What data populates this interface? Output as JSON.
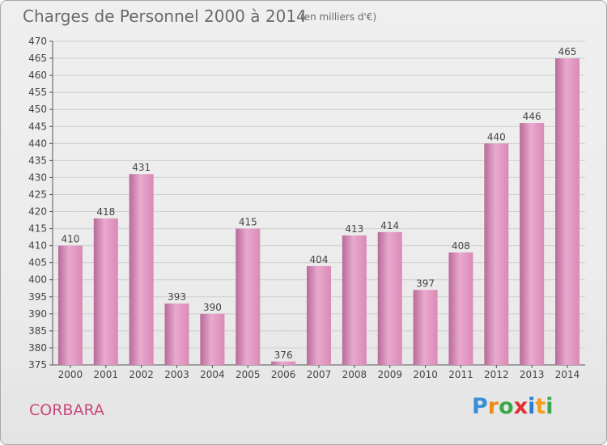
{
  "title": "Charges de Personnel 2000 à 2014",
  "unit": "(en milliers d'€)",
  "place": "CORBARA",
  "logo": {
    "letters": [
      "P",
      "r",
      "o",
      "x",
      "i",
      "t",
      "i"
    ],
    "colors": [
      "#3a8fd6",
      "#f08a1c",
      "#3aa84a",
      "#e03030",
      "#2a7fcc",
      "#f0a01c",
      "#3aa84a"
    ]
  },
  "colors": {
    "bar": "#d98ab5",
    "bar_light": "#e9a9cf",
    "bar_dark": "#b86a98",
    "grid": "#cfcfcf",
    "title": "#6a6a6a",
    "place": "#c8497a"
  },
  "chart_data": {
    "type": "bar",
    "categories": [
      "2000",
      "2001",
      "2002",
      "2003",
      "2004",
      "2005",
      "2006",
      "2007",
      "2008",
      "2009",
      "2010",
      "2011",
      "2012",
      "2013",
      "2014"
    ],
    "values": [
      410,
      418,
      431,
      393,
      390,
      415,
      376,
      404,
      413,
      414,
      397,
      408,
      440,
      446,
      465
    ],
    "ylim": [
      375,
      470
    ],
    "yticks": [
      375,
      380,
      385,
      390,
      395,
      400,
      405,
      410,
      415,
      420,
      425,
      430,
      435,
      440,
      445,
      450,
      455,
      460,
      465,
      470
    ],
    "grid": true,
    "title": "Charges de Personnel 2000 à 2014",
    "xlabel": "",
    "ylabel": ""
  }
}
